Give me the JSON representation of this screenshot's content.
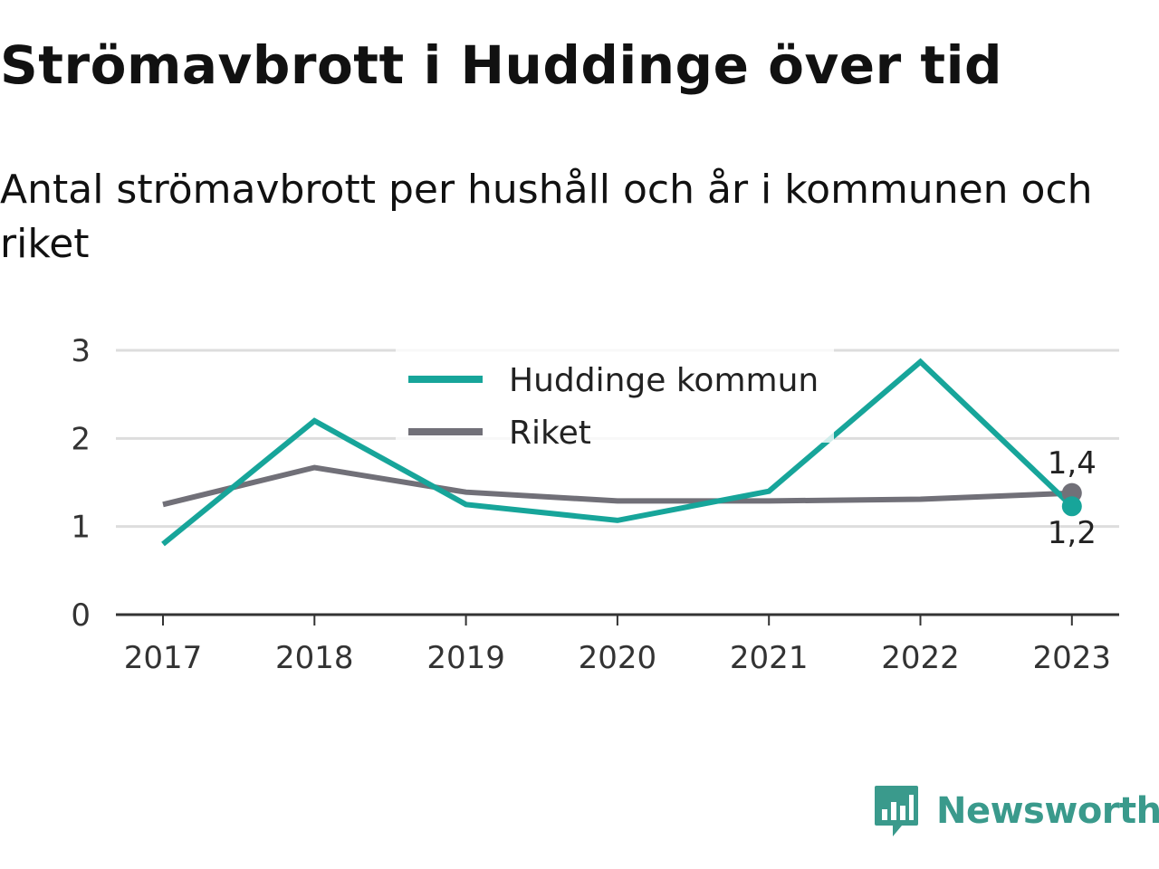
{
  "title": "Strömavbrott i Huddinge över tid",
  "subtitle": "Antal strömavbrott per hushåll och år i kommunen och riket",
  "brand": {
    "name": "Newsworthy",
    "logo_icon": "newsworthy-chart-badge-icon",
    "color": "#3a9a8c"
  },
  "chart_data": {
    "type": "line",
    "x": [
      "2017",
      "2018",
      "2019",
      "2020",
      "2021",
      "2022",
      "2023"
    ],
    "ylim": [
      0,
      3
    ],
    "yticks": [
      "0",
      "1",
      "2",
      "3"
    ],
    "grid": true,
    "legend_position": "top-center",
    "series": [
      {
        "name": "Huddinge kommun",
        "color": "#17a59a",
        "values": [
          0.8,
          2.2,
          1.25,
          1.07,
          1.4,
          2.87,
          1.23
        ],
        "end_label": "1,2"
      },
      {
        "name": "Riket",
        "color": "#717078",
        "values": [
          1.25,
          1.67,
          1.39,
          1.29,
          1.29,
          1.31,
          1.38
        ],
        "end_label": "1,4"
      }
    ]
  }
}
